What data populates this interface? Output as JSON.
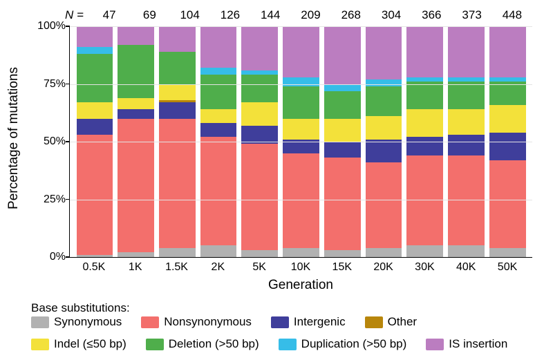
{
  "chart": {
    "type": "stacked-bar",
    "n_label": "N =",
    "n_values": [
      "47",
      "69",
      "104",
      "126",
      "144",
      "209",
      "268",
      "304",
      "366",
      "373",
      "448"
    ],
    "ylabel": "Percentage of mutations",
    "xlabel": "Generation",
    "ylim": [
      0,
      100
    ],
    "ytick_step": 25,
    "yticks": [
      "0%",
      "25%",
      "50%",
      "75%",
      "100%"
    ],
    "categories": [
      "0.5K",
      "1K",
      "1.5K",
      "2K",
      "5K",
      "10K",
      "15K",
      "20K",
      "30K",
      "40K",
      "50K"
    ],
    "series_order": [
      "synonymous",
      "nonsynonymous",
      "intergenic",
      "other",
      "indel",
      "deletion",
      "duplication",
      "is_insertion"
    ],
    "colors": {
      "synonymous": "#b1b1b1",
      "nonsynonymous": "#f36f6c",
      "intergenic": "#3f3e9b",
      "other": "#b8860b",
      "indel": "#f3e13a",
      "deletion": "#4fae4b",
      "duplication": "#36bde8",
      "is_insertion": "#bb7dc0"
    },
    "background_color": "#ffffff",
    "grid_color": "#e4e4e4",
    "axis_color": "#000000",
    "label_fontsize": 19,
    "tick_fontsize": 16,
    "n_fontsize": 17,
    "data": [
      {
        "synonymous": 1,
        "nonsynonymous": 52,
        "intergenic": 7,
        "other": 0,
        "indel": 7,
        "deletion": 21,
        "duplication": 3,
        "is_insertion": 9
      },
      {
        "synonymous": 2,
        "nonsynonymous": 58,
        "intergenic": 4,
        "other": 0,
        "indel": 5,
        "deletion": 23,
        "duplication": 0,
        "is_insertion": 8
      },
      {
        "synonymous": 4,
        "nonsynonymous": 56,
        "intergenic": 7,
        "other": 1,
        "indel": 7,
        "deletion": 14,
        "duplication": 0,
        "is_insertion": 11
      },
      {
        "synonymous": 5,
        "nonsynonymous": 47,
        "intergenic": 6,
        "other": 0,
        "indel": 6,
        "deletion": 15,
        "duplication": 3,
        "is_insertion": 18
      },
      {
        "synonymous": 3,
        "nonsynonymous": 46,
        "intergenic": 8,
        "other": 0,
        "indel": 10,
        "deletion": 12,
        "duplication": 2,
        "is_insertion": 19
      },
      {
        "synonymous": 4,
        "nonsynonymous": 41,
        "intergenic": 6,
        "other": 0,
        "indel": 9,
        "deletion": 14,
        "duplication": 4,
        "is_insertion": 22
      },
      {
        "synonymous": 3,
        "nonsynonymous": 40,
        "intergenic": 7,
        "other": 0,
        "indel": 10,
        "deletion": 12,
        "duplication": 3,
        "is_insertion": 25
      },
      {
        "synonymous": 4,
        "nonsynonymous": 37,
        "intergenic": 10,
        "other": 0,
        "indel": 10,
        "deletion": 13,
        "duplication": 3,
        "is_insertion": 23
      },
      {
        "synonymous": 5,
        "nonsynonymous": 39,
        "intergenic": 8,
        "other": 0,
        "indel": 12,
        "deletion": 12,
        "duplication": 2,
        "is_insertion": 22
      },
      {
        "synonymous": 5,
        "nonsynonymous": 39,
        "intergenic": 9,
        "other": 0,
        "indel": 11,
        "deletion": 12,
        "duplication": 2,
        "is_insertion": 22
      },
      {
        "synonymous": 4,
        "nonsynonymous": 38,
        "intergenic": 12,
        "other": 0,
        "indel": 12,
        "deletion": 10,
        "duplication": 2,
        "is_insertion": 22
      }
    ],
    "legend": {
      "row1_title": "Base substitutions:",
      "row1": [
        {
          "key": "synonymous",
          "label": "Synonymous"
        },
        {
          "key": "nonsynonymous",
          "label": "Nonsynonymous"
        },
        {
          "key": "intergenic",
          "label": "Intergenic"
        },
        {
          "key": "other",
          "label": "Other"
        }
      ],
      "row2": [
        {
          "key": "indel",
          "label": "Indel (≤50 bp)"
        },
        {
          "key": "deletion",
          "label": "Deletion (>50 bp)"
        },
        {
          "key": "duplication",
          "label": "Duplication (>50 bp)"
        },
        {
          "key": "is_insertion",
          "label": "IS insertion"
        }
      ]
    }
  }
}
